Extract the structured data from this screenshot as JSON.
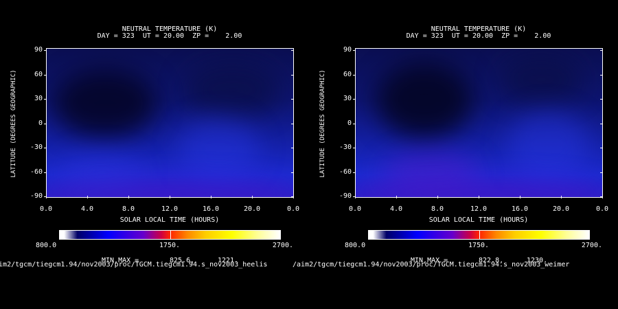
{
  "panels": [
    {
      "title": "NEUTRAL TEMPERATURE (K)",
      "subtitle": "DAY = 323  UT = 20.00  ZP =    2.00",
      "min_max_label": "MIN,MAX =",
      "min_value": "825.6,",
      "max_value": "1221.",
      "path": "/aim2/tgcm/tiegcm1.94/nov2003/proc/TGCM.tiegcm1.94.s_nov2003_heelis",
      "colorbar_min": "800.0",
      "colorbar_mid": "1750.",
      "colorbar_max": "2700."
    },
    {
      "title": "NEUTRAL TEMPERATURE (K)",
      "subtitle": "DAY = 323  UT = 20.00  ZP =    2.00",
      "min_max_label": "MIN,MAX =",
      "min_value": "822.8,",
      "max_value": "1230.",
      "path": "/aim2/tgcm/tiegcm1.94/nov2003/proc/TGCM.tiegcm1.94.s_nov2003_weimer",
      "colorbar_min": "800.0",
      "colorbar_mid": "1750.",
      "colorbar_max": "2700."
    }
  ],
  "chart_data": [
    {
      "type": "heatmap",
      "title": "NEUTRAL TEMPERATURE (K)",
      "subtitle": "DAY = 323  UT = 20.00  ZP =    2.00",
      "xlabel": "SOLAR LOCAL TIME (HOURS)",
      "ylabel": "LATITUDE (DEGREES GEOGRAPHIC)",
      "x_ticks": [
        "0.0",
        "4.0",
        "8.0",
        "12.0",
        "16.0",
        "20.0",
        "0.0"
      ],
      "y_ticks": [
        "90",
        "60",
        "30",
        "0",
        "-30",
        "-60",
        "-90"
      ],
      "xlim": [
        0,
        24
      ],
      "ylim": [
        -90,
        90
      ],
      "colorbar": {
        "min": 800.0,
        "max": 2700.0,
        "ticks": [
          "800.0",
          "1750.",
          "2700."
        ]
      },
      "min": 825.6,
      "max": 1221.0,
      "colors": {
        "low": "#0b0f52",
        "mid": "#1420a8",
        "high": "#2c1fc8"
      }
    },
    {
      "type": "heatmap",
      "title": "NEUTRAL TEMPERATURE (K)",
      "subtitle": "DAY = 323  UT = 20.00  ZP =    2.00",
      "xlabel": "SOLAR LOCAL TIME (HOURS)",
      "ylabel": "LATITUDE (DEGREES GEOGRAPHIC)",
      "x_ticks": [
        "0.0",
        "4.0",
        "8.0",
        "12.0",
        "16.0",
        "20.0",
        "0.0"
      ],
      "y_ticks": [
        "90",
        "60",
        "30",
        "0",
        "-30",
        "-60",
        "-90"
      ],
      "xlim": [
        0,
        24
      ],
      "ylim": [
        -90,
        90
      ],
      "colorbar": {
        "min": 800.0,
        "max": 2700.0,
        "ticks": [
          "800.0",
          "1750.",
          "2700."
        ]
      },
      "min": 822.8,
      "max": 1230.0,
      "colors": {
        "low": "#0b0f52",
        "mid": "#1420a8",
        "high": "#2c1fc8"
      }
    }
  ]
}
